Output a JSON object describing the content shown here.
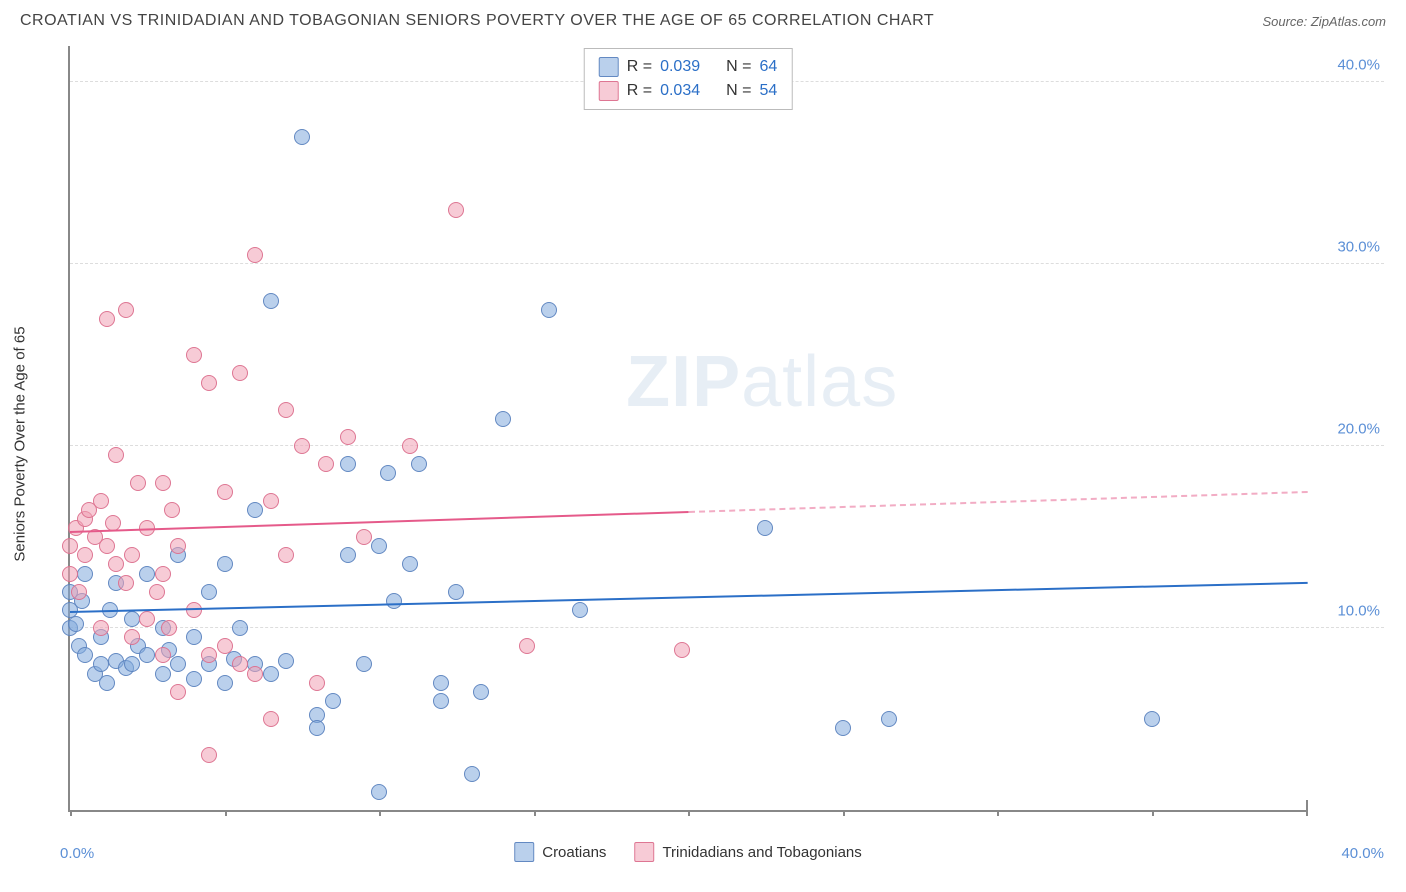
{
  "title": "CROATIAN VS TRINIDADIAN AND TOBAGONIAN SENIORS POVERTY OVER THE AGE OF 65 CORRELATION CHART",
  "source_label": "Source: ZipAtlas.com",
  "y_axis_label": "Seniors Poverty Over the Age of 65",
  "watermark_bold": "ZIP",
  "watermark_light": "atlas",
  "chart": {
    "type": "scatter",
    "xlim": [
      0,
      40
    ],
    "ylim": [
      0,
      42
    ],
    "x_ticks": [
      {
        "v": 0,
        "label": "0.0%"
      },
      {
        "v": 40,
        "label": "40.0%"
      }
    ],
    "y_ticks": [
      {
        "v": 10,
        "label": "10.0%"
      },
      {
        "v": 20,
        "label": "20.0%"
      },
      {
        "v": 30,
        "label": "30.0%"
      },
      {
        "v": 40,
        "label": "40.0%"
      }
    ],
    "x_tick_marks": [
      0,
      5,
      10,
      15,
      20,
      25,
      30,
      35,
      40
    ],
    "grid_color": "#dddddd",
    "background_color": "#ffffff",
    "series": [
      {
        "name": "Croatians",
        "color_fill": "rgba(130,170,220,0.55)",
        "color_stroke": "rgba(90,130,190,0.9)",
        "r_value": "0.039",
        "n_value": "64",
        "trend": {
          "x1": 0,
          "y1": 10.8,
          "x2": 40,
          "y2": 12.4,
          "solid_until": 40,
          "color": "#2b6fc7"
        },
        "points": [
          [
            0,
            11
          ],
          [
            0,
            12
          ],
          [
            0,
            10
          ],
          [
            0.3,
            9
          ],
          [
            0.5,
            13
          ],
          [
            0.5,
            8.5
          ],
          [
            0.8,
            7.5
          ],
          [
            1,
            9.5
          ],
          [
            1,
            8
          ],
          [
            1.2,
            7
          ],
          [
            1.3,
            11
          ],
          [
            1.5,
            8.2
          ],
          [
            1.5,
            12.5
          ],
          [
            1.8,
            7.8
          ],
          [
            2,
            8
          ],
          [
            2,
            10.5
          ],
          [
            2.2,
            9
          ],
          [
            2.5,
            8.5
          ],
          [
            2.5,
            13
          ],
          [
            3,
            7.5
          ],
          [
            3,
            10
          ],
          [
            3.2,
            8.8
          ],
          [
            3.5,
            8
          ],
          [
            3.5,
            14
          ],
          [
            4,
            7.2
          ],
          [
            4,
            9.5
          ],
          [
            4.5,
            12
          ],
          [
            4.5,
            8
          ],
          [
            5,
            13.5
          ],
          [
            5,
            7
          ],
          [
            5.3,
            8.3
          ],
          [
            5.5,
            10
          ],
          [
            6,
            8
          ],
          [
            6,
            16.5
          ],
          [
            6.5,
            7.5
          ],
          [
            6.5,
            28
          ],
          [
            7,
            8.2
          ],
          [
            7.5,
            37
          ],
          [
            8,
            5.2
          ],
          [
            8,
            4.5
          ],
          [
            8.5,
            6
          ],
          [
            9,
            14
          ],
          [
            9,
            19
          ],
          [
            9.5,
            8
          ],
          [
            10,
            1
          ],
          [
            10,
            14.5
          ],
          [
            10.3,
            18.5
          ],
          [
            10.5,
            11.5
          ],
          [
            11,
            13.5
          ],
          [
            11.3,
            19
          ],
          [
            12,
            6
          ],
          [
            12,
            7
          ],
          [
            12.5,
            12
          ],
          [
            13,
            2
          ],
          [
            13.3,
            6.5
          ],
          [
            14,
            21.5
          ],
          [
            15.5,
            27.5
          ],
          [
            16.5,
            11
          ],
          [
            22.5,
            15.5
          ],
          [
            25,
            4.5
          ],
          [
            26.5,
            5
          ],
          [
            35,
            5
          ],
          [
            0.2,
            10.2
          ],
          [
            0.4,
            11.5
          ]
        ]
      },
      {
        "name": "Trinidadians and Tobagonians",
        "color_fill": "rgba(240,160,180,0.55)",
        "color_stroke": "rgba(220,110,140,0.9)",
        "r_value": "0.034",
        "n_value": "54",
        "trend": {
          "x1": 0,
          "y1": 15.2,
          "x2": 40,
          "y2": 17.4,
          "solid_until": 20,
          "color": "#e55a8a"
        },
        "points": [
          [
            0,
            13
          ],
          [
            0,
            14.5
          ],
          [
            0.2,
            15.5
          ],
          [
            0.3,
            12
          ],
          [
            0.5,
            16
          ],
          [
            0.5,
            14
          ],
          [
            0.8,
            15
          ],
          [
            1,
            10
          ],
          [
            1,
            17
          ],
          [
            1.2,
            14.5
          ],
          [
            1.2,
            27
          ],
          [
            1.5,
            13.5
          ],
          [
            1.5,
            19.5
          ],
          [
            1.8,
            12.5
          ],
          [
            1.8,
            27.5
          ],
          [
            2,
            9.5
          ],
          [
            2,
            14
          ],
          [
            2.2,
            18
          ],
          [
            2.5,
            10.5
          ],
          [
            2.5,
            15.5
          ],
          [
            3,
            8.5
          ],
          [
            3,
            13
          ],
          [
            3,
            18
          ],
          [
            3.2,
            10
          ],
          [
            3.3,
            16.5
          ],
          [
            3.5,
            14.5
          ],
          [
            3.5,
            6.5
          ],
          [
            4,
            11
          ],
          [
            4,
            25
          ],
          [
            4.5,
            8.5
          ],
          [
            4.5,
            23.5
          ],
          [
            4.5,
            3
          ],
          [
            5,
            9
          ],
          [
            5,
            17.5
          ],
          [
            5.5,
            24
          ],
          [
            5.5,
            8
          ],
          [
            6,
            30.5
          ],
          [
            6,
            7.5
          ],
          [
            6.5,
            17
          ],
          [
            6.5,
            5
          ],
          [
            7,
            14
          ],
          [
            7,
            22
          ],
          [
            7.5,
            20
          ],
          [
            8,
            7
          ],
          [
            8.3,
            19
          ],
          [
            9,
            20.5
          ],
          [
            9.5,
            15
          ],
          [
            11,
            20
          ],
          [
            12.5,
            33
          ],
          [
            14.8,
            9
          ],
          [
            19.8,
            8.8
          ],
          [
            0.6,
            16.5
          ],
          [
            1.4,
            15.8
          ],
          [
            2.8,
            12
          ]
        ]
      }
    ]
  },
  "legend_bottom": [
    {
      "swatch": "blue",
      "label": "Croatians"
    },
    {
      "swatch": "pink",
      "label": "Trinidadians and Tobagonians"
    }
  ]
}
